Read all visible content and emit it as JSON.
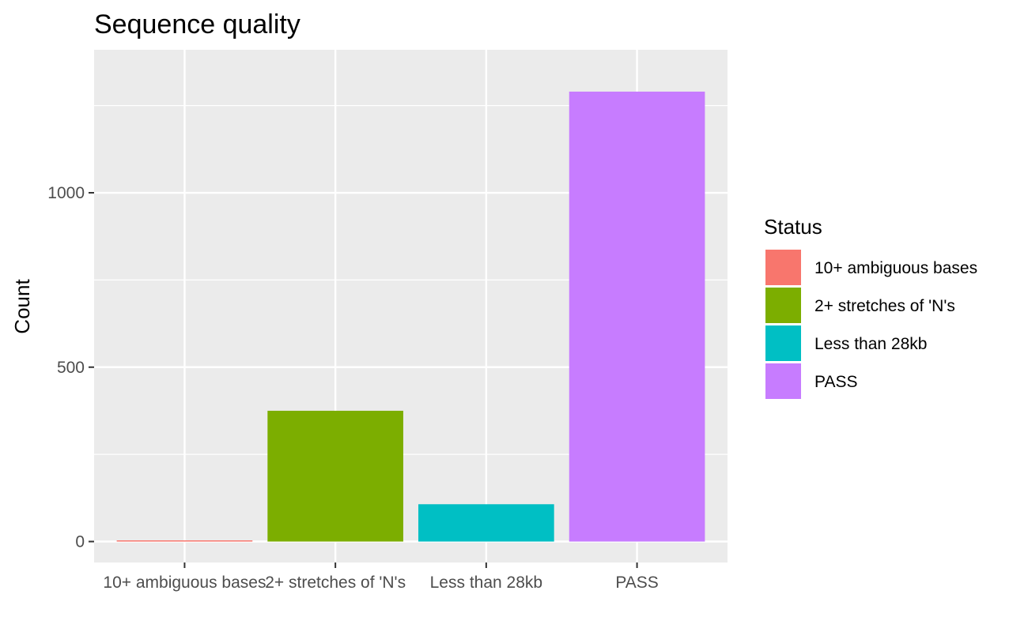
{
  "chart_data": {
    "type": "bar",
    "title": "Sequence quality",
    "xlabel": "",
    "ylabel": "Count",
    "categories": [
      "10+ ambiguous bases",
      "2+ stretches of 'N's",
      "Less than 28kb",
      "PASS"
    ],
    "values": [
      2,
      375,
      107,
      1290
    ],
    "colors": [
      "#F8766D",
      "#7CAE00",
      "#00BFC4",
      "#C77CFF"
    ],
    "ylim": [
      -60,
      1410
    ],
    "yticks": [
      0,
      500,
      1000
    ],
    "yminor": [
      250,
      750,
      1250
    ],
    "grid": true,
    "panel_background": "#EBEBEB",
    "legend": {
      "title": "Status",
      "placement": "right",
      "entries": [
        "10+ ambiguous bases",
        "2+ stretches of 'N's",
        "Less than 28kb",
        "PASS"
      ]
    }
  }
}
